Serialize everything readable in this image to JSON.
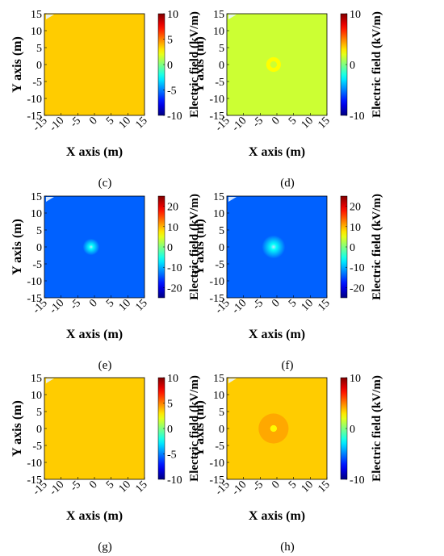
{
  "chart_data": [
    {
      "type": "heatmap",
      "caption": "(c)",
      "xlabel": "X  axis  (m)",
      "ylabel": "Y  axis  (m)",
      "x_ticks": [
        "-15",
        "-10",
        "-5",
        "0",
        "5",
        "10",
        "15"
      ],
      "y_ticks": [
        "15",
        "10",
        "5",
        "0",
        "-5",
        "-10",
        "-15"
      ],
      "xlim": [
        -15,
        15
      ],
      "ylim": [
        -15,
        15
      ],
      "colorbar": {
        "label": "Electric field (kV/m)",
        "range": [
          -10,
          10
        ],
        "ticks": [
          "10",
          "5",
          "0",
          "-5",
          "-10"
        ]
      },
      "background_value": 3.5,
      "features": []
    },
    {
      "type": "heatmap",
      "caption": "(d)",
      "xlabel": "X  axis  (m)",
      "ylabel": "Y  axis  (m)",
      "x_ticks": [
        "-15",
        "-10",
        "-5",
        "0",
        "5",
        "10",
        "15"
      ],
      "y_ticks": [
        "15",
        "10",
        "5",
        "0",
        "-5",
        "-10",
        "-15"
      ],
      "xlim": [
        -15,
        15
      ],
      "ylim": [
        -15,
        15
      ],
      "colorbar": {
        "label": "Electric field (kV/m)",
        "range": [
          -10,
          10
        ],
        "ticks": [
          "10",
          "0",
          "-10"
        ]
      },
      "background_value": 1.5,
      "features": [
        {
          "shape": "ring",
          "center": [
            -1,
            0
          ],
          "r_outer": 2.2,
          "r_inner": 1.0,
          "value": 2.5
        }
      ]
    },
    {
      "type": "heatmap",
      "caption": "(e)",
      "xlabel": "X  axis  (m)",
      "ylabel": "Y  axis  (m)",
      "x_ticks": [
        "-15",
        "-10",
        "-5",
        "0",
        "5",
        "10",
        "15"
      ],
      "y_ticks": [
        "15",
        "10",
        "5",
        "0",
        "-5",
        "-10",
        "-15"
      ],
      "xlim": [
        -15,
        15
      ],
      "ylim": [
        -15,
        15
      ],
      "colorbar": {
        "label": "Electric field (kV/m)",
        "range": [
          -25,
          25
        ],
        "ticks": [
          "20",
          "10",
          "0",
          "-10",
          "-20"
        ]
      },
      "background_value": -14,
      "features": [
        {
          "shape": "glow",
          "center": [
            -1,
            0
          ],
          "radius": 2.5,
          "value": -6
        }
      ]
    },
    {
      "type": "heatmap",
      "caption": "(f)",
      "xlabel": "X  axis  (m)",
      "ylabel": "Y  axis  (m)",
      "x_ticks": [
        "-15",
        "-10",
        "-5",
        "0",
        "5",
        "10",
        "15"
      ],
      "y_ticks": [
        "15",
        "10",
        "5",
        "0",
        "-5",
        "-10",
        "-15"
      ],
      "xlim": [
        -15,
        15
      ],
      "ylim": [
        -15,
        15
      ],
      "colorbar": {
        "label": "Electric field (kV/m)",
        "range": [
          -25,
          25
        ],
        "ticks": [
          "20",
          "10",
          "0",
          "-10",
          "-20"
        ]
      },
      "background_value": -14,
      "features": [
        {
          "shape": "glow",
          "center": [
            -1,
            0
          ],
          "radius": 3.5,
          "value": -6
        }
      ]
    },
    {
      "type": "heatmap",
      "caption": "(g)",
      "xlabel": "X  axis  (m)",
      "ylabel": "Y  axis  (m)",
      "x_ticks": [
        "-15",
        "-10",
        "-5",
        "0",
        "5",
        "10",
        "15"
      ],
      "y_ticks": [
        "15",
        "10",
        "5",
        "0",
        "-5",
        "-10",
        "-15"
      ],
      "xlim": [
        -15,
        15
      ],
      "ylim": [
        -15,
        15
      ],
      "colorbar": {
        "label": "Electric field (kV/m)",
        "range": [
          -10,
          10
        ],
        "ticks": [
          "10",
          "5",
          "0",
          "-5",
          "-10"
        ]
      },
      "background_value": 3.5,
      "features": []
    },
    {
      "type": "heatmap",
      "caption": "(h)",
      "xlabel": "X  axis  (m)",
      "ylabel": "Y  axis  (m)",
      "x_ticks": [
        "-15",
        "-10",
        "-5",
        "0",
        "5",
        "10",
        "15"
      ],
      "y_ticks": [
        "15",
        "10",
        "5",
        "0",
        "-5",
        "-10",
        "-15"
      ],
      "xlim": [
        -15,
        15
      ],
      "ylim": [
        -15,
        15
      ],
      "colorbar": {
        "label": "Electric field (kV/m)",
        "range": [
          -10,
          10
        ],
        "ticks": [
          "10",
          "0",
          "-10"
        ]
      },
      "background_value": 3.5,
      "features": [
        {
          "shape": "ring",
          "center": [
            -1,
            0
          ],
          "r_outer": 4.5,
          "r_inner": 1.0,
          "value": 4.2
        },
        {
          "shape": "disk",
          "center": [
            -1,
            0
          ],
          "radius": 1.0,
          "value": 2.6
        }
      ]
    }
  ]
}
